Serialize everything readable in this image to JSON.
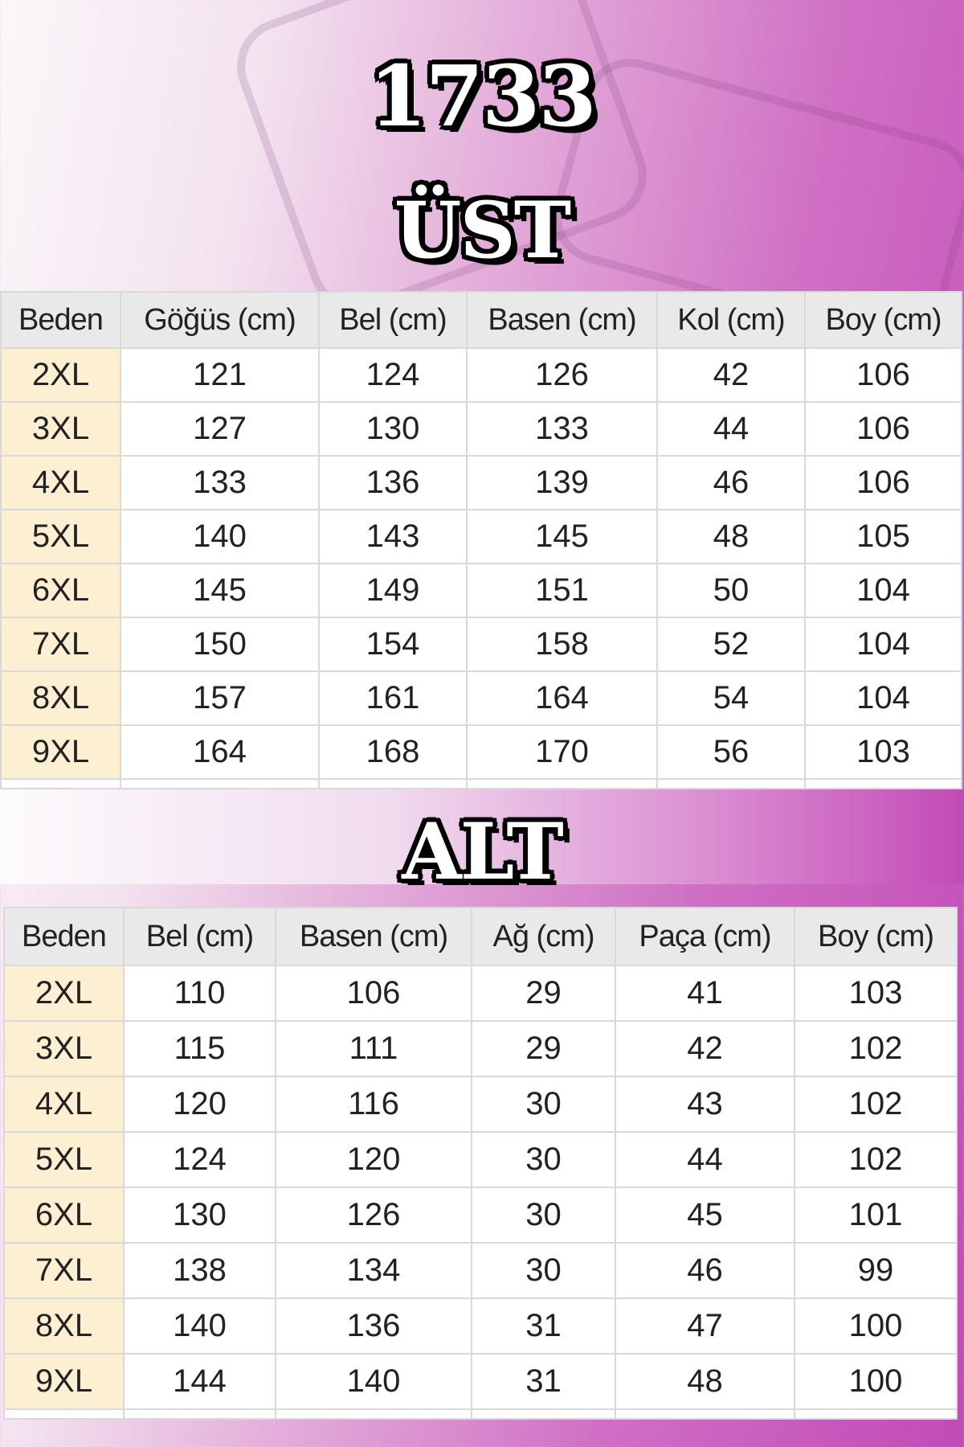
{
  "model_number": "1733",
  "top_section": {
    "title": "ÜST",
    "headers": [
      "Beden",
      "Göğüs (cm)",
      "Bel (cm)",
      "Basen (cm)",
      "Kol (cm)",
      "Boy (cm)"
    ],
    "rows": [
      [
        "2XL",
        "121",
        "124",
        "126",
        "42",
        "106"
      ],
      [
        "3XL",
        "127",
        "130",
        "133",
        "44",
        "106"
      ],
      [
        "4XL",
        "133",
        "136",
        "139",
        "46",
        "106"
      ],
      [
        "5XL",
        "140",
        "143",
        "145",
        "48",
        "105"
      ],
      [
        "6XL",
        "145",
        "149",
        "151",
        "50",
        "104"
      ],
      [
        "7XL",
        "150",
        "154",
        "158",
        "52",
        "104"
      ],
      [
        "8XL",
        "157",
        "161",
        "164",
        "54",
        "104"
      ],
      [
        "9XL",
        "164",
        "168",
        "170",
        "56",
        "103"
      ]
    ]
  },
  "bottom_section": {
    "title": "ALT",
    "headers": [
      "Beden",
      "Bel (cm)",
      "Basen (cm)",
      "Ağ (cm)",
      "Paça (cm)",
      "Boy (cm)"
    ],
    "rows": [
      [
        "2XL",
        "110",
        "106",
        "29",
        "41",
        "103"
      ],
      [
        "3XL",
        "115",
        "111",
        "29",
        "42",
        "102"
      ],
      [
        "4XL",
        "120",
        "116",
        "30",
        "43",
        "102"
      ],
      [
        "5XL",
        "124",
        "120",
        "30",
        "44",
        "102"
      ],
      [
        "6XL",
        "130",
        "126",
        "30",
        "45",
        "101"
      ],
      [
        "7XL",
        "138",
        "134",
        "30",
        "46",
        "99"
      ],
      [
        "8XL",
        "140",
        "136",
        "31",
        "47",
        "100"
      ],
      [
        "9XL",
        "144",
        "140",
        "31",
        "48",
        "100"
      ]
    ]
  },
  "colors": {
    "size_column": "#fdf0d2",
    "header": "#e9e9e9",
    "background_accent": "#c24bb6"
  }
}
